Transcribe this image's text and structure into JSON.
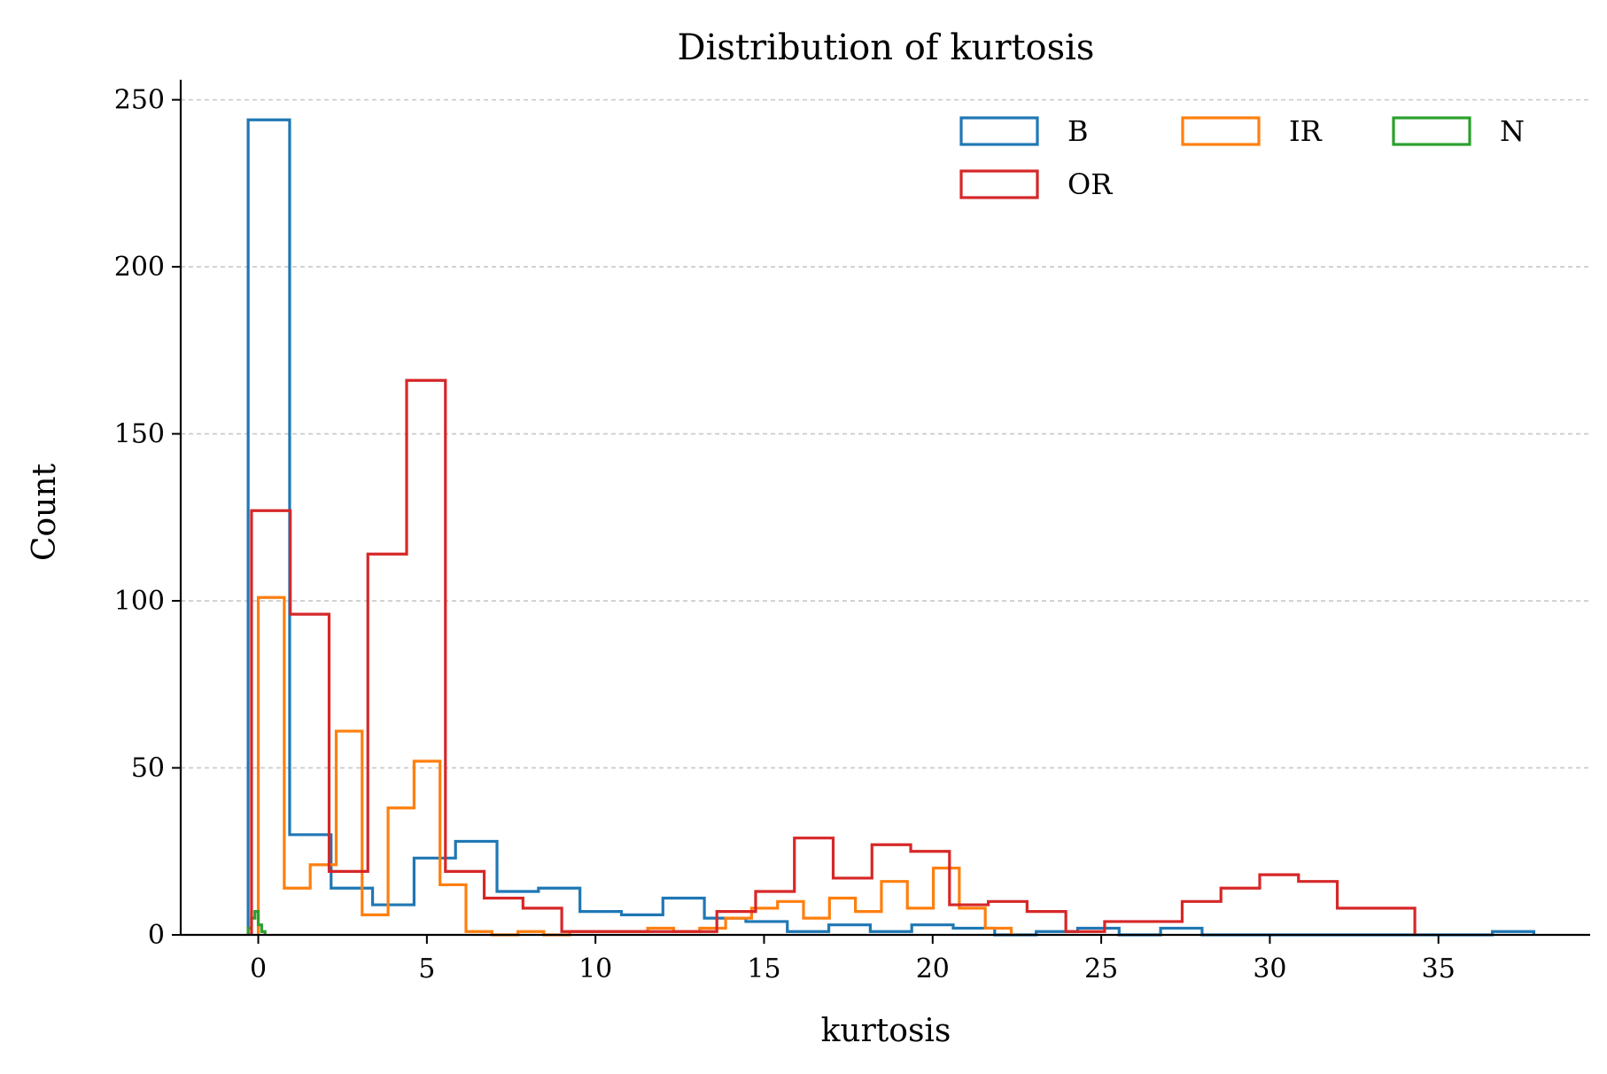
{
  "chart_data": {
    "type": "histogram-step",
    "title": "Distribution of kurtosis",
    "xlabel": "kurtosis",
    "ylabel": "Count",
    "xlim": [
      -2.3,
      39.5
    ],
    "ylim": [
      0,
      256
    ],
    "xticks": [
      0,
      5,
      10,
      15,
      20,
      25,
      30,
      35
    ],
    "yticks": [
      0,
      50,
      100,
      150,
      200,
      250
    ],
    "grid": "y-dashed",
    "legend": {
      "placement": "top-right",
      "ncol": 3
    },
    "series": [
      {
        "name": "B",
        "color": "#1f77b4",
        "edges": [
          -0.3,
          0.93,
          2.16,
          3.39,
          4.62,
          5.85,
          7.08,
          8.31,
          9.54,
          10.77,
          12.0,
          13.23,
          14.46,
          15.69,
          16.92,
          18.15,
          19.38,
          20.61,
          21.84,
          23.07,
          24.3,
          25.53,
          26.76,
          27.99,
          29.22,
          30.45,
          31.68,
          32.91,
          34.14,
          35.37,
          36.6,
          37.83
        ],
        "counts": [
          244,
          30,
          14,
          9,
          23,
          28,
          13,
          14,
          7,
          6,
          11,
          5,
          4,
          1,
          3,
          1,
          3,
          2,
          0,
          1,
          2,
          0,
          2,
          0,
          0,
          0,
          0,
          0,
          0,
          0,
          1
        ]
      },
      {
        "name": "IR",
        "color": "#ff7f0e",
        "edges": [
          0.0,
          0.77,
          1.54,
          2.31,
          3.08,
          3.85,
          4.62,
          5.39,
          6.16,
          6.93,
          7.7,
          8.47,
          9.24,
          10.01,
          10.78,
          11.55,
          12.32,
          13.09,
          13.86,
          14.63,
          15.4,
          16.17,
          16.94,
          17.71,
          18.48,
          19.25,
          20.02,
          20.79,
          21.56,
          22.33
        ],
        "counts": [
          101,
          14,
          21,
          61,
          6,
          38,
          52,
          15,
          1,
          0,
          1,
          0,
          1,
          1,
          1,
          2,
          1,
          2,
          5,
          8,
          10,
          5,
          11,
          7,
          16,
          8,
          20,
          8,
          2
        ]
      },
      {
        "name": "N",
        "color": "#2ca02c",
        "edges": [
          -0.3,
          -0.2,
          -0.1,
          0.0,
          0.1,
          0.2
        ],
        "counts": [
          2,
          5,
          7,
          3,
          1
        ]
      },
      {
        "name": "OR",
        "color": "#d62728",
        "edges": [
          -0.2,
          0.95,
          2.1,
          3.25,
          4.4,
          5.55,
          6.7,
          7.85,
          9.0,
          10.15,
          11.3,
          12.45,
          13.6,
          14.75,
          15.9,
          17.05,
          18.2,
          19.35,
          20.5,
          21.65,
          22.8,
          23.95,
          25.1,
          26.25,
          27.4,
          28.55,
          29.7,
          30.85,
          32.0,
          33.15,
          34.3
        ],
        "counts": [
          127,
          96,
          19,
          114,
          166,
          19,
          11,
          8,
          1,
          1,
          1,
          1,
          7,
          13,
          29,
          17,
          27,
          25,
          9,
          10,
          7,
          1,
          4,
          4,
          10,
          14,
          18,
          16,
          8,
          8
        ]
      }
    ]
  }
}
